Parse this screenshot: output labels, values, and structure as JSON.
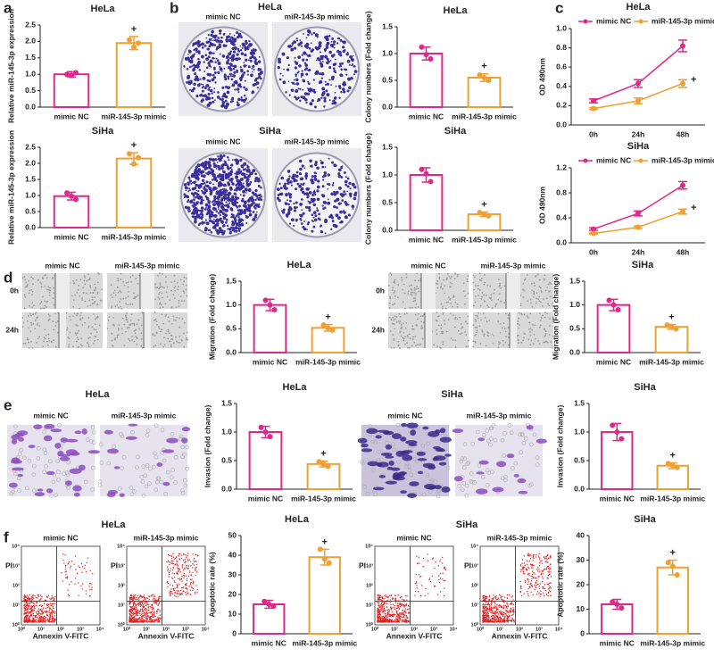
{
  "panel_labels": [
    "a",
    "b",
    "c",
    "d",
    "e",
    "f"
  ],
  "image_panels": [
    {
      "title": "HeLa",
      "labels": [
        "mimic NC",
        "miR-145-3p mimic"
      ]
    },
    {
      "title": "SiHa",
      "labels": [
        "mimic NC",
        "miR-145-3p mimic"
      ]
    },
    {
      "labels": [
        "mimic NC",
        "miR-145-3p mimic"
      ],
      "rows": [
        "0h",
        "24h"
      ]
    },
    {
      "labels": [
        "mimic NC",
        "miR-145-3p mimic"
      ],
      "rows": [
        "0h",
        "24h"
      ]
    },
    {
      "title": "HeLa",
      "labels": [
        "mimic NC",
        "miR-145-3p mimic"
      ]
    },
    {
      "title": "SiHa",
      "labels": [
        "mimic NC",
        "miR-145-3p mimic"
      ]
    },
    {
      "title": "HeLa",
      "labels": [
        "mimic NC",
        "miR-145-3p mimic"
      ],
      "x_label": "Annexin V-FITC",
      "y_label": "PI",
      "ticks": [
        "10⁰",
        "10¹",
        "10²",
        "10³",
        "10⁴"
      ]
    },
    {
      "title": "SiHa",
      "labels": [
        "mimic NC",
        "miR-145-3p mimic"
      ],
      "x_label": "Annexin V-FITC",
      "y_label": "PI",
      "ticks": [
        "10⁰",
        "10¹",
        "10²",
        "10³",
        "10⁴"
      ]
    }
  ],
  "chart_data": [
    {
      "type": "bar",
      "title": "HeLa",
      "y_label": "Relative miR-145-3p expression",
      "categories": [
        "mimic NC",
        "miR-145-3p mimic"
      ],
      "values": [
        1.0,
        1.95
      ],
      "errors": [
        0.08,
        0.2
      ],
      "points": [
        [
          1.0,
          1.05,
          0.96
        ],
        [
          2.05,
          1.95,
          1.83
        ]
      ],
      "colors": [
        "#e0288a",
        "#f0a030"
      ],
      "ylim": [
        0,
        2.5
      ],
      "yticks": [
        {
          "value": 0,
          "label": "0.0"
        },
        0.5,
        {
          "value": 1,
          "label": "1.0"
        },
        1.5,
        {
          "value": 2,
          "label": "2.0"
        },
        2.5
      ],
      "annotation": "+"
    },
    {
      "type": "bar",
      "title": "SiHa",
      "y_label": "Relative miR-145-3p expression",
      "categories": [
        "mimic NC",
        "miR-145-3p mimic"
      ],
      "values": [
        0.98,
        2.15
      ],
      "errors": [
        0.12,
        0.18
      ],
      "points": [
        [
          1.08,
          0.88,
          0.98
        ],
        [
          2.3,
          2.18,
          1.98
        ]
      ],
      "colors": [
        "#e0288a",
        "#f0a030"
      ],
      "ylim": [
        0,
        2.5
      ],
      "yticks": [
        {
          "value": 0,
          "label": "0.0"
        },
        0.5,
        {
          "value": 1,
          "label": "1.0"
        },
        1.5,
        {
          "value": 2,
          "label": "2.0"
        },
        2.5
      ],
      "annotation": "+"
    },
    {
      "type": "bar",
      "title": "HeLa",
      "y_label": "Colony numbers (Fold change)",
      "categories": [
        "mimic NC",
        "miR-145-3p mimic"
      ],
      "values": [
        1.0,
        0.55
      ],
      "errors": [
        0.12,
        0.07
      ],
      "points": [
        [
          1.12,
          0.9,
          0.98
        ],
        [
          0.6,
          0.5,
          0.55
        ]
      ],
      "colors": [
        "#e0288a",
        "#f0a030"
      ],
      "ylim": [
        0,
        1.5
      ],
      "yticks": [
        {
          "value": 0,
          "label": "0.0"
        },
        0.5,
        {
          "value": 1,
          "label": "1.0"
        },
        1.5
      ],
      "annotation": "+"
    },
    {
      "type": "bar",
      "title": "SiHa",
      "y_label": "Colony numbers (Fold change)",
      "categories": [
        "mimic NC",
        "miR-145-3p mimic"
      ],
      "values": [
        1.0,
        0.29
      ],
      "errors": [
        0.13,
        0.04
      ],
      "points": [
        [
          1.1,
          0.88,
          1.02
        ],
        [
          0.32,
          0.26,
          0.29
        ]
      ],
      "colors": [
        "#e0288a",
        "#f0a030"
      ],
      "ylim": [
        0,
        1.5
      ],
      "yticks": [
        {
          "value": 0,
          "label": "0.0"
        },
        0.5,
        {
          "value": 1,
          "label": "1.0"
        },
        1.5
      ],
      "annotation": "+"
    },
    {
      "type": "line",
      "title": "HeLa",
      "y_label": "OD 490nm",
      "categories": [
        "0h",
        "24h",
        "48h"
      ],
      "series": [
        {
          "name": "mimic NC",
          "color": "#e0288a",
          "values": [
            0.25,
            0.43,
            0.82
          ],
          "errors": [
            0.02,
            0.04,
            0.06
          ]
        },
        {
          "name": "miR-145-3p mimic",
          "color": "#f0a030",
          "values": [
            0.17,
            0.25,
            0.43
          ],
          "errors": [
            0.01,
            0.03,
            0.04
          ]
        }
      ],
      "ylim": [
        0,
        1.0
      ],
      "yticks": [
        {
          "value": 0,
          "label": "0.0"
        },
        0.2,
        0.4,
        0.6,
        0.8,
        {
          "value": 1,
          "label": "1.0"
        }
      ],
      "annotation": "+"
    },
    {
      "type": "line",
      "title": "SiHa",
      "y_label": "OD 490nm",
      "categories": [
        "0h",
        "24h",
        "48h"
      ],
      "series": [
        {
          "name": "mimic NC",
          "color": "#e0288a",
          "values": [
            0.22,
            0.47,
            0.92
          ],
          "errors": [
            0.02,
            0.04,
            0.06
          ]
        },
        {
          "name": "miR-145-3p mimic",
          "color": "#f0a030",
          "values": [
            0.15,
            0.25,
            0.5
          ],
          "errors": [
            0.01,
            0.02,
            0.04
          ]
        }
      ],
      "ylim": [
        0,
        1.2
      ],
      "yticks": [
        {
          "value": 0,
          "label": "0.0"
        },
        0.4,
        0.8,
        1.2
      ],
      "annotation": "+"
    },
    {
      "type": "bar",
      "title": "HeLa",
      "y_label": "Migration (Fold change)",
      "categories": [
        "mimic NC",
        "miR-145-3p mimic"
      ],
      "values": [
        1.0,
        0.52
      ],
      "errors": [
        0.12,
        0.07
      ],
      "points": [
        [
          1.1,
          0.9,
          1.0
        ],
        [
          0.58,
          0.47,
          0.52
        ]
      ],
      "colors": [
        "#e0288a",
        "#f0a030"
      ],
      "ylim": [
        0,
        1.5
      ],
      "yticks": [
        {
          "value": 0,
          "label": "0.0"
        },
        0.5,
        {
          "value": 1,
          "label": "1.0"
        },
        1.5
      ],
      "annotation": "+"
    },
    {
      "type": "bar",
      "title": "SiHa",
      "y_label": "Migration (Fold change)",
      "categories": [
        "mimic NC",
        "miR-145-3p mimic"
      ],
      "values": [
        1.0,
        0.54
      ],
      "errors": [
        0.12,
        0.05
      ],
      "points": [
        [
          1.1,
          0.9,
          1.0
        ],
        [
          0.58,
          0.5,
          0.55
        ]
      ],
      "colors": [
        "#e0288a",
        "#f0a030"
      ],
      "ylim": [
        0,
        1.5
      ],
      "yticks": [
        {
          "value": 0,
          "label": "0.0"
        },
        0.5,
        {
          "value": 1,
          "label": "1.0"
        },
        1.5
      ],
      "annotation": "+"
    },
    {
      "type": "bar",
      "title": "HeLa",
      "y_label": "Invasion (Fold change)",
      "categories": [
        "mimic NC",
        "miR-145-3p mimic"
      ],
      "values": [
        1.0,
        0.44
      ],
      "errors": [
        0.1,
        0.05
      ],
      "points": [
        [
          1.08,
          0.92,
          1.0
        ],
        [
          0.48,
          0.4,
          0.44
        ]
      ],
      "colors": [
        "#e0288a",
        "#f0a030"
      ],
      "ylim": [
        0,
        1.5
      ],
      "yticks": [
        {
          "value": 0,
          "label": "0.0"
        },
        0.5,
        {
          "value": 1,
          "label": "1.0"
        },
        1.5
      ],
      "annotation": "+"
    },
    {
      "type": "bar",
      "title": "SiHa",
      "y_label": "Invasion (Fold change)",
      "categories": [
        "mimic NC",
        "miR-145-3p mimic"
      ],
      "values": [
        1.0,
        0.41
      ],
      "errors": [
        0.15,
        0.05
      ],
      "points": [
        [
          1.12,
          0.88,
          1.0
        ],
        [
          0.45,
          0.38,
          0.41
        ]
      ],
      "colors": [
        "#e0288a",
        "#f0a030"
      ],
      "ylim": [
        0,
        1.5
      ],
      "yticks": [
        {
          "value": 0,
          "label": "0.0"
        },
        0.5,
        {
          "value": 1,
          "label": "1.0"
        },
        1.5
      ],
      "annotation": "+"
    },
    {
      "type": "bar",
      "title": "HeLa",
      "y_label": "Apoptotic rate (%)",
      "categories": [
        "mimic NC",
        "miR-145-3p mimic"
      ],
      "values": [
        15,
        39
      ],
      "errors": [
        2,
        4
      ],
      "points": [
        [
          16.5,
          14,
          15
        ],
        [
          43,
          36,
          38
        ]
      ],
      "colors": [
        "#e0288a",
        "#f0a030"
      ],
      "ylim": [
        0,
        50
      ],
      "yticks": [
        0,
        10,
        20,
        30,
        40,
        50
      ],
      "annotation": "+"
    },
    {
      "type": "bar",
      "title": "SiHa",
      "y_label": "Apoptotic rate (%)",
      "categories": [
        "mimic NC",
        "miR-145-3p mimic"
      ],
      "values": [
        12,
        27
      ],
      "errors": [
        2,
        3
      ],
      "points": [
        [
          13,
          10.5,
          12
        ],
        [
          29,
          24,
          27.5
        ]
      ],
      "colors": [
        "#e0288a",
        "#f0a030"
      ],
      "ylim": [
        0,
        40
      ],
      "yticks": [
        0,
        10,
        20,
        30,
        40
      ],
      "annotation": "+"
    }
  ]
}
